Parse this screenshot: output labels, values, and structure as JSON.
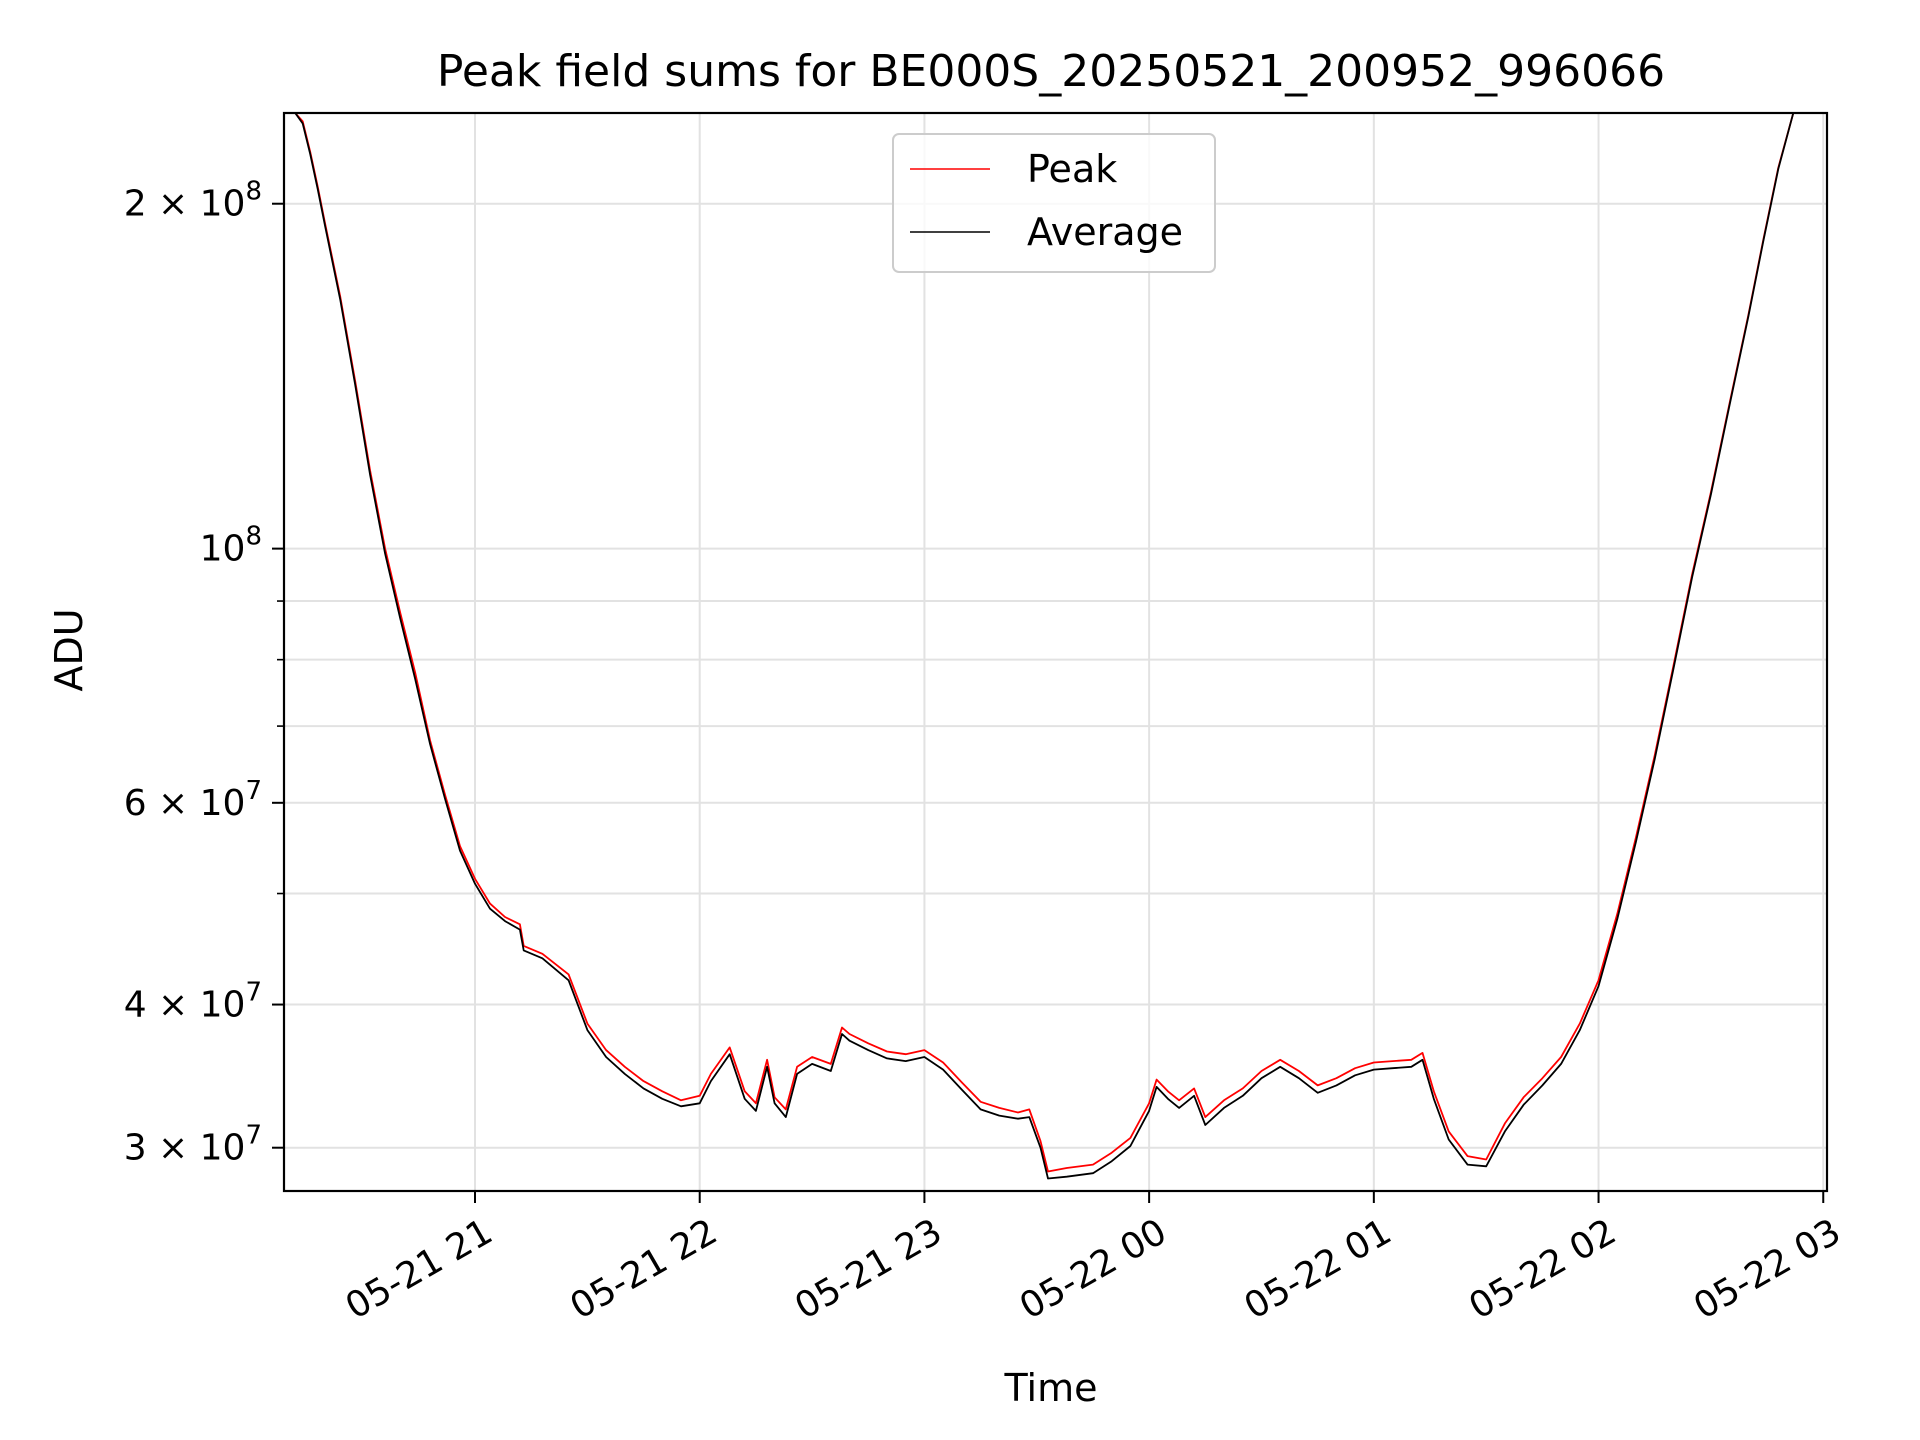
{
  "chart_data": {
    "type": "line",
    "title": "Peak field sums for BE000S_20250521_200952_996066",
    "xlabel": "Time",
    "ylabel": "ADU",
    "yscale": "log",
    "grid": true,
    "legend_placement": "upper center",
    "xlim": [
      "2025-05-21 20:09",
      "2025-05-22 03:01"
    ],
    "ylim": [
      27500000,
      240000000
    ],
    "x_ticks": [
      "05-21 21",
      "05-21 22",
      "05-21 23",
      "05-22 00",
      "05-22 01",
      "05-22 02",
      "05-22 03"
    ],
    "x_tick_times": [
      "2025-05-21 21:00",
      "2025-05-21 22:00",
      "2025-05-21 23:00",
      "2025-05-22 00:00",
      "2025-05-22 01:00",
      "2025-05-22 02:00",
      "2025-05-22 03:00"
    ],
    "y_major_ticks": [
      {
        "value": 30000000,
        "mantissa": "3",
        "exp": "7"
      },
      {
        "value": 40000000,
        "mantissa": "4",
        "exp": "7"
      },
      {
        "value": 60000000,
        "mantissa": "6",
        "exp": "7"
      },
      {
        "value": 100000000,
        "mantissa": "",
        "exp": "8"
      },
      {
        "value": 200000000,
        "mantissa": "2",
        "exp": "8"
      }
    ],
    "y_minor_grid": [
      50000000,
      70000000,
      80000000,
      90000000
    ],
    "series": [
      {
        "name": "Peak",
        "color": "#ff0000",
        "x": [
          "2025-05-21 20:10",
          "2025-05-21 20:12",
          "2025-05-21 20:14",
          "2025-05-21 20:16",
          "2025-05-21 20:18",
          "2025-05-21 20:20",
          "2025-05-21 20:24",
          "2025-05-21 20:28",
          "2025-05-21 20:32",
          "2025-05-21 20:36",
          "2025-05-21 20:40",
          "2025-05-21 20:44",
          "2025-05-21 20:48",
          "2025-05-21 20:52",
          "2025-05-21 20:56",
          "2025-05-21 21:00",
          "2025-05-21 21:04",
          "2025-05-21 21:08",
          "2025-05-21 21:12",
          "2025-05-21 21:13",
          "2025-05-21 21:18",
          "2025-05-21 21:25",
          "2025-05-21 21:30",
          "2025-05-21 21:35",
          "2025-05-21 21:40",
          "2025-05-21 21:45",
          "2025-05-21 21:50",
          "2025-05-21 21:55",
          "2025-05-21 22:00",
          "2025-05-21 22:03",
          "2025-05-21 22:08",
          "2025-05-21 22:12",
          "2025-05-21 22:15",
          "2025-05-21 22:18",
          "2025-05-21 22:20",
          "2025-05-21 22:23",
          "2025-05-21 22:26",
          "2025-05-21 22:30",
          "2025-05-21 22:35",
          "2025-05-21 22:38",
          "2025-05-21 22:40",
          "2025-05-21 22:45",
          "2025-05-21 22:50",
          "2025-05-21 22:55",
          "2025-05-21 23:00",
          "2025-05-21 23:05",
          "2025-05-21 23:10",
          "2025-05-21 23:15",
          "2025-05-21 23:20",
          "2025-05-21 23:25",
          "2025-05-21 23:28",
          "2025-05-21 23:31",
          "2025-05-21 23:33",
          "2025-05-21 23:38",
          "2025-05-21 23:45",
          "2025-05-21 23:50",
          "2025-05-21 23:55",
          "2025-05-22 00:00",
          "2025-05-22 00:02",
          "2025-05-22 00:05",
          "2025-05-22 00:08",
          "2025-05-22 00:12",
          "2025-05-22 00:15",
          "2025-05-22 00:20",
          "2025-05-22 00:25",
          "2025-05-22 00:30",
          "2025-05-22 00:35",
          "2025-05-22 00:40",
          "2025-05-22 00:45",
          "2025-05-22 00:50",
          "2025-05-22 00:55",
          "2025-05-22 01:00",
          "2025-05-22 01:05",
          "2025-05-22 01:10",
          "2025-05-22 01:13",
          "2025-05-22 01:16",
          "2025-05-22 01:20",
          "2025-05-22 01:25",
          "2025-05-22 01:30",
          "2025-05-22 01:35",
          "2025-05-22 01:40",
          "2025-05-22 01:45",
          "2025-05-22 01:50",
          "2025-05-22 01:55",
          "2025-05-22 02:00",
          "2025-05-22 02:05",
          "2025-05-22 02:10",
          "2025-05-22 02:15",
          "2025-05-22 02:20",
          "2025-05-22 02:25",
          "2025-05-22 02:30",
          "2025-05-22 02:35",
          "2025-05-22 02:40",
          "2025-05-22 02:44",
          "2025-05-22 02:48",
          "2025-05-22 02:52",
          "2025-05-22 02:56"
        ],
        "values": [
          240000000,
          240000000,
          236000000,
          222000000,
          207000000,
          192000000,
          166000000,
          140000000,
          117000000,
          100000000,
          88000000,
          78000000,
          68000000,
          61000000,
          55000000,
          51500000,
          49000000,
          47700000,
          47000000,
          45000000,
          44300000,
          42500000,
          38500000,
          36500000,
          35300000,
          34300000,
          33600000,
          33000000,
          33300000,
          34800000,
          36700000,
          33600000,
          32800000,
          35800000,
          33200000,
          32400000,
          35300000,
          36000000,
          35500000,
          38200000,
          37700000,
          37000000,
          36400000,
          36200000,
          36500000,
          35600000,
          34200000,
          32900000,
          32500000,
          32200000,
          32400000,
          30400000,
          28600000,
          28800000,
          29000000,
          29700000,
          30600000,
          32800000,
          34400000,
          33600000,
          33000000,
          33800000,
          31900000,
          33000000,
          33800000,
          35000000,
          35800000,
          35000000,
          34000000,
          34500000,
          35200000,
          35600000,
          35700000,
          35800000,
          36300000,
          33600000,
          31000000,
          29500000,
          29300000,
          31500000,
          33200000,
          34500000,
          36000000,
          38500000,
          42000000,
          48000000,
          56000000,
          66000000,
          79000000,
          95000000,
          112000000,
          134000000,
          160000000,
          186000000,
          215000000,
          240000000,
          240000000
        ]
      },
      {
        "name": "Average",
        "color": "#000000",
        "x": [
          "2025-05-21 20:10",
          "2025-05-21 20:12",
          "2025-05-21 20:14",
          "2025-05-21 20:16",
          "2025-05-21 20:18",
          "2025-05-21 20:20",
          "2025-05-21 20:24",
          "2025-05-21 20:28",
          "2025-05-21 20:32",
          "2025-05-21 20:36",
          "2025-05-21 20:40",
          "2025-05-21 20:44",
          "2025-05-21 20:48",
          "2025-05-21 20:52",
          "2025-05-21 20:56",
          "2025-05-21 21:00",
          "2025-05-21 21:04",
          "2025-05-21 21:08",
          "2025-05-21 21:12",
          "2025-05-21 21:13",
          "2025-05-21 21:18",
          "2025-05-21 21:25",
          "2025-05-21 21:30",
          "2025-05-21 21:35",
          "2025-05-21 21:40",
          "2025-05-21 21:45",
          "2025-05-21 21:50",
          "2025-05-21 21:55",
          "2025-05-21 22:00",
          "2025-05-21 22:03",
          "2025-05-21 22:08",
          "2025-05-21 22:12",
          "2025-05-21 22:15",
          "2025-05-21 22:18",
          "2025-05-21 22:20",
          "2025-05-21 22:23",
          "2025-05-21 22:26",
          "2025-05-21 22:30",
          "2025-05-21 22:35",
          "2025-05-21 22:38",
          "2025-05-21 22:40",
          "2025-05-21 22:45",
          "2025-05-21 22:50",
          "2025-05-21 22:55",
          "2025-05-21 23:00",
          "2025-05-21 23:05",
          "2025-05-21 23:10",
          "2025-05-21 23:15",
          "2025-05-21 23:20",
          "2025-05-21 23:25",
          "2025-05-21 23:28",
          "2025-05-21 23:31",
          "2025-05-21 23:33",
          "2025-05-21 23:38",
          "2025-05-21 23:45",
          "2025-05-21 23:50",
          "2025-05-21 23:55",
          "2025-05-22 00:00",
          "2025-05-22 00:02",
          "2025-05-22 00:05",
          "2025-05-22 00:08",
          "2025-05-22 00:12",
          "2025-05-22 00:15",
          "2025-05-22 00:20",
          "2025-05-22 00:25",
          "2025-05-22 00:30",
          "2025-05-22 00:35",
          "2025-05-22 00:40",
          "2025-05-22 00:45",
          "2025-05-22 00:50",
          "2025-05-22 00:55",
          "2025-05-22 01:00",
          "2025-05-22 01:05",
          "2025-05-22 01:10",
          "2025-05-22 01:13",
          "2025-05-22 01:16",
          "2025-05-22 01:20",
          "2025-05-22 01:25",
          "2025-05-22 01:30",
          "2025-05-22 01:35",
          "2025-05-22 01:40",
          "2025-05-22 01:45",
          "2025-05-22 01:50",
          "2025-05-22 01:55",
          "2025-05-22 02:00",
          "2025-05-22 02:05",
          "2025-05-22 02:10",
          "2025-05-22 02:15",
          "2025-05-22 02:20",
          "2025-05-22 02:25",
          "2025-05-22 02:30",
          "2025-05-22 02:35",
          "2025-05-22 02:40",
          "2025-05-22 02:44",
          "2025-05-22 02:48",
          "2025-05-22 02:52",
          "2025-05-22 02:56"
        ],
        "values": [
          240000000,
          240000000,
          235000000,
          221000000,
          206000000,
          191000000,
          165000000,
          139000000,
          116000000,
          99000000,
          87000000,
          77000000,
          67500000,
          60500000,
          54500000,
          51000000,
          48500000,
          47300000,
          46500000,
          44600000,
          43900000,
          42000000,
          38000000,
          36000000,
          34800000,
          33800000,
          33100000,
          32600000,
          32800000,
          34300000,
          36200000,
          33100000,
          32300000,
          35300000,
          32800000,
          31900000,
          34800000,
          35500000,
          35000000,
          37700000,
          37200000,
          36500000,
          35900000,
          35700000,
          36000000,
          35100000,
          33700000,
          32400000,
          32000000,
          31800000,
          31900000,
          30000000,
          28200000,
          28300000,
          28500000,
          29200000,
          30100000,
          32300000,
          33900000,
          33100000,
          32500000,
          33300000,
          31400000,
          32500000,
          33300000,
          34500000,
          35300000,
          34500000,
          33500000,
          34000000,
          34700000,
          35100000,
          35200000,
          35300000,
          35800000,
          33100000,
          30500000,
          29000000,
          28900000,
          31000000,
          32700000,
          34000000,
          35500000,
          38000000,
          41500000,
          47500000,
          55500000,
          65500000,
          78500000,
          94500000,
          111500000,
          133500000,
          159500000,
          185500000,
          214500000,
          240000000,
          240000000
        ]
      }
    ]
  }
}
